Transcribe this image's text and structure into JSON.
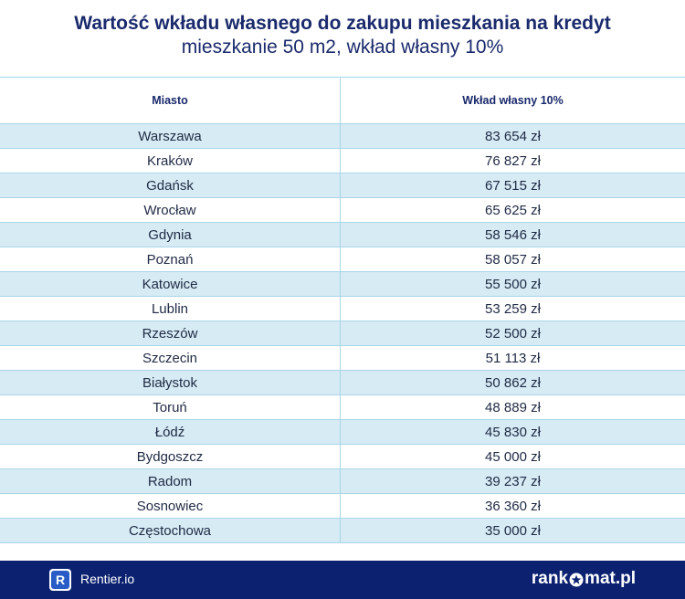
{
  "header": {
    "title": "Wartość wkładu własnego do zakupu mieszkania na kredyt",
    "subtitle": "mieszkanie 50 m2, wkład własny 10%"
  },
  "chart_data": {
    "type": "table",
    "title": "Wartość wkładu własnego do zakupu mieszkania na kredyt",
    "subtitle": "mieszkanie 50 m2, wkład własny 10%",
    "columns": [
      "Miasto",
      "Wkład własny 10%"
    ],
    "rows": [
      {
        "city": "Warszawa",
        "value": "83 654 zł"
      },
      {
        "city": "Kraków",
        "value": "76 827 zł"
      },
      {
        "city": "Gdańsk",
        "value": "67 515 zł"
      },
      {
        "city": "Wrocław",
        "value": "65 625 zł"
      },
      {
        "city": "Gdynia",
        "value": "58 546 zł"
      },
      {
        "city": "Poznań",
        "value": "58 057 zł"
      },
      {
        "city": "Katowice",
        "value": "55 500 zł"
      },
      {
        "city": "Lublin",
        "value": "53 259 zł"
      },
      {
        "city": "Rzeszów",
        "value": "52 500 zł"
      },
      {
        "city": "Szczecin",
        "value": "51 113 zł"
      },
      {
        "city": "Białystok",
        "value": "50 862 zł"
      },
      {
        "city": "Toruń",
        "value": "48 889 zł"
      },
      {
        "city": "Łódź",
        "value": "45 830 zł"
      },
      {
        "city": "Bydgoszcz",
        "value": "45 000 zł"
      },
      {
        "city": "Radom",
        "value": "39 237 zł"
      },
      {
        "city": "Sosnowiec",
        "value": "36 360 zł"
      },
      {
        "city": "Częstochowa",
        "value": "35 000 zł"
      }
    ]
  },
  "footer": {
    "left_logo_letter": "R",
    "left_brand": "Rentier.io",
    "right_brand_part1": "rank",
    "right_brand_part2": "mat.pl",
    "right_logo_icon": "star-icon"
  },
  "colors": {
    "title": "#1a2a6c",
    "row_stripe": "#d6ebf4",
    "grid": "#a9d6e8",
    "footer_bg": "#0c2271",
    "logo_blue": "#2a5cc7"
  }
}
